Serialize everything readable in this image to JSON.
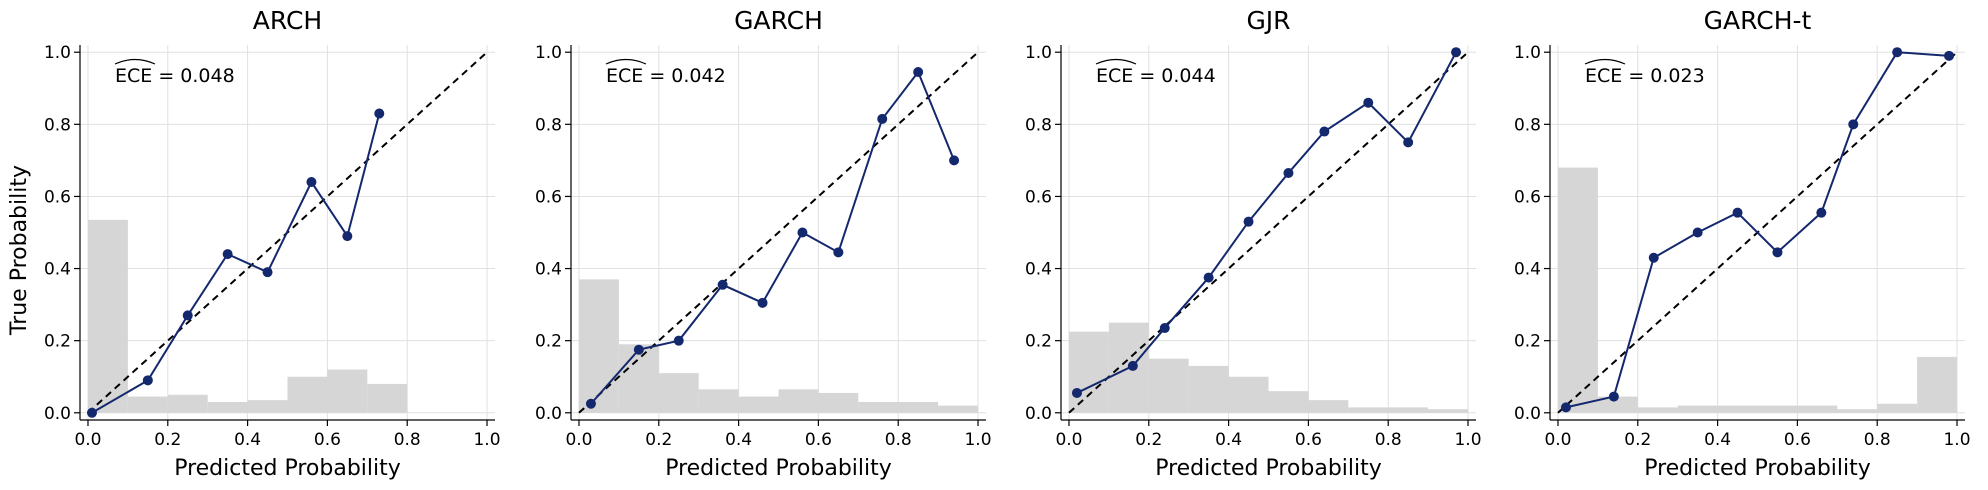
{
  "figure": {
    "ylabel": "True Probability",
    "xlabel": "Predicted Probability"
  },
  "style": {
    "line_color": "#14286e",
    "hist_color": "#d6d6d6",
    "grid_color": "#e0e0e0",
    "diagonal_color": "#000000"
  },
  "chart_data": [
    {
      "type": "line",
      "title": "ARCH",
      "annotation": "ECE = 0.048",
      "xlim": [
        0,
        1
      ],
      "ylim": [
        0,
        1
      ],
      "xticks": [
        "0.0",
        "0.2",
        "0.4",
        "0.6",
        "0.8",
        "1.0"
      ],
      "yticks": [
        "0.0",
        "0.2",
        "0.4",
        "0.6",
        "0.8",
        "1.0"
      ],
      "grid": true,
      "calibration": {
        "x": [
          0.01,
          0.15,
          0.25,
          0.35,
          0.45,
          0.56,
          0.65,
          0.73
        ],
        "y": [
          0.0,
          0.09,
          0.27,
          0.44,
          0.39,
          0.64,
          0.49,
          0.83
        ]
      },
      "histogram": {
        "bin_edges": [
          0,
          0.1,
          0.2,
          0.3,
          0.4,
          0.5,
          0.6,
          0.7,
          0.8,
          0.9,
          1.0
        ],
        "heights": [
          0.535,
          0.045,
          0.05,
          0.03,
          0.035,
          0.1,
          0.12,
          0.08,
          0.0,
          0.0
        ]
      }
    },
    {
      "type": "line",
      "title": "GARCH",
      "annotation": "ECE = 0.042",
      "xlim": [
        0,
        1
      ],
      "ylim": [
        0,
        1
      ],
      "xticks": [
        "0.0",
        "0.2",
        "0.4",
        "0.6",
        "0.8",
        "1.0"
      ],
      "yticks": [
        "0.0",
        "0.2",
        "0.4",
        "0.6",
        "0.8",
        "1.0"
      ],
      "grid": true,
      "calibration": {
        "x": [
          0.03,
          0.15,
          0.25,
          0.36,
          0.46,
          0.56,
          0.65,
          0.76,
          0.85,
          0.94
        ],
        "y": [
          0.025,
          0.175,
          0.2,
          0.355,
          0.305,
          0.5,
          0.445,
          0.815,
          0.945,
          0.7
        ]
      },
      "histogram": {
        "bin_edges": [
          0,
          0.1,
          0.2,
          0.3,
          0.4,
          0.5,
          0.6,
          0.7,
          0.8,
          0.9,
          1.0
        ],
        "heights": [
          0.37,
          0.19,
          0.11,
          0.065,
          0.045,
          0.065,
          0.055,
          0.03,
          0.03,
          0.02
        ]
      }
    },
    {
      "type": "line",
      "title": "GJR",
      "annotation": "ECE = 0.044",
      "xlim": [
        0,
        1
      ],
      "ylim": [
        0,
        1
      ],
      "xticks": [
        "0.0",
        "0.2",
        "0.4",
        "0.6",
        "0.8",
        "1.0"
      ],
      "yticks": [
        "0.0",
        "0.2",
        "0.4",
        "0.6",
        "0.8",
        "1.0"
      ],
      "grid": true,
      "calibration": {
        "x": [
          0.02,
          0.16,
          0.24,
          0.35,
          0.45,
          0.55,
          0.64,
          0.75,
          0.85,
          0.97
        ],
        "y": [
          0.055,
          0.13,
          0.235,
          0.375,
          0.53,
          0.665,
          0.78,
          0.86,
          0.75,
          1.0
        ]
      },
      "histogram": {
        "bin_edges": [
          0,
          0.1,
          0.2,
          0.3,
          0.4,
          0.5,
          0.6,
          0.7,
          0.8,
          0.9,
          1.0
        ],
        "heights": [
          0.225,
          0.25,
          0.15,
          0.13,
          0.1,
          0.06,
          0.035,
          0.015,
          0.015,
          0.01
        ]
      }
    },
    {
      "type": "line",
      "title": "GARCH-t",
      "annotation": "ECE = 0.023",
      "xlim": [
        0,
        1
      ],
      "ylim": [
        0,
        1
      ],
      "xticks": [
        "0.0",
        "0.2",
        "0.4",
        "0.6",
        "0.8",
        "1.0"
      ],
      "yticks": [
        "0.0",
        "0.2",
        "0.4",
        "0.6",
        "0.8",
        "1.0"
      ],
      "grid": true,
      "calibration": {
        "x": [
          0.02,
          0.14,
          0.24,
          0.35,
          0.45,
          0.55,
          0.66,
          0.74,
          0.85,
          0.98
        ],
        "y": [
          0.015,
          0.045,
          0.43,
          0.5,
          0.555,
          0.445,
          0.555,
          0.8,
          1.0,
          0.99
        ]
      },
      "histogram": {
        "bin_edges": [
          0,
          0.1,
          0.2,
          0.3,
          0.4,
          0.5,
          0.6,
          0.7,
          0.8,
          0.9,
          1.0
        ],
        "heights": [
          0.68,
          0.045,
          0.015,
          0.02,
          0.02,
          0.02,
          0.02,
          0.01,
          0.025,
          0.155
        ]
      }
    }
  ]
}
